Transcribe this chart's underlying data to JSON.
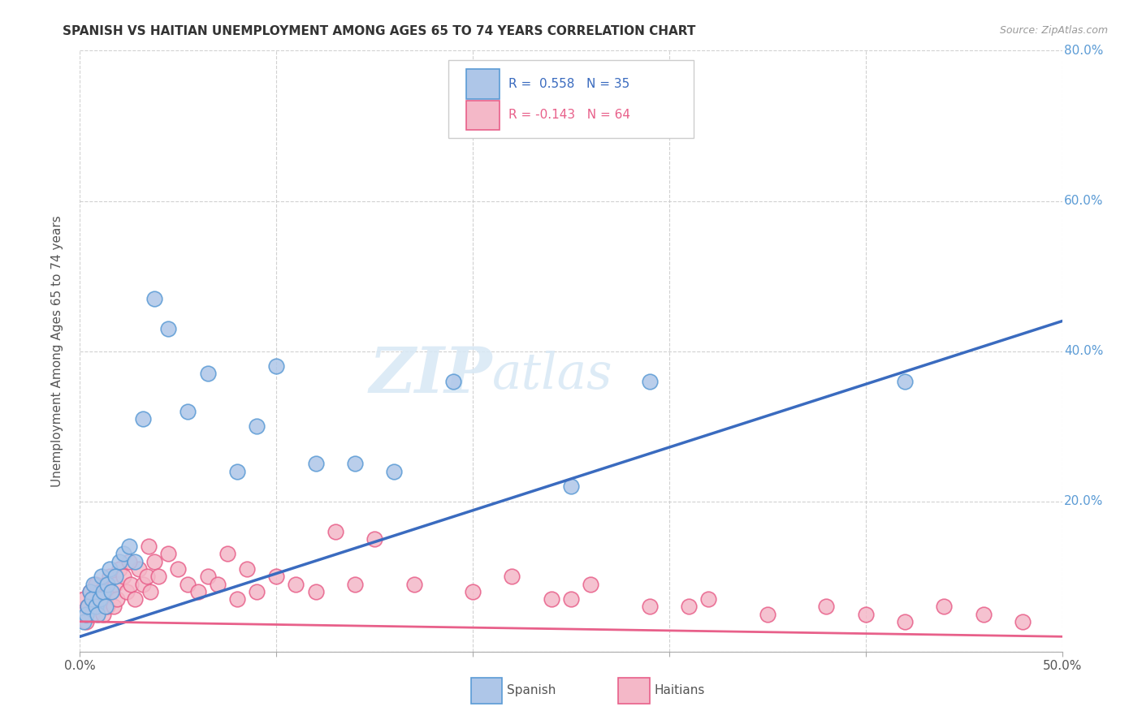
{
  "title": "SPANISH VS HAITIAN UNEMPLOYMENT AMONG AGES 65 TO 74 YEARS CORRELATION CHART",
  "source": "Source: ZipAtlas.com",
  "ylabel": "Unemployment Among Ages 65 to 74 years",
  "xlim": [
    0.0,
    0.5
  ],
  "ylim": [
    0.0,
    0.8
  ],
  "xticks": [
    0.0,
    0.1,
    0.2,
    0.3,
    0.4,
    0.5
  ],
  "yticks": [
    0.0,
    0.2,
    0.4,
    0.6,
    0.8
  ],
  "xtick_labels": [
    "0.0%",
    "",
    "",
    "",
    "",
    "50.0%"
  ],
  "ytick_labels_right": [
    "",
    "20.0%",
    "40.0%",
    "60.0%",
    "80.0%"
  ],
  "grid_color": "#cccccc",
  "background_color": "#ffffff",
  "spanish_color": "#aec6e8",
  "haitian_color": "#f4b8c8",
  "spanish_edge_color": "#5b9bd5",
  "haitian_edge_color": "#e8608a",
  "spanish_line_color": "#3a6bbf",
  "haitian_line_color": "#e8608a",
  "legend_label_spanish": "Spanish",
  "legend_label_haitian": "Haitians",
  "watermark_zip": "ZIP",
  "watermark_atlas": "atlas",
  "spanish_x": [
    0.002,
    0.003,
    0.004,
    0.005,
    0.006,
    0.007,
    0.008,
    0.009,
    0.01,
    0.011,
    0.012,
    0.013,
    0.014,
    0.015,
    0.016,
    0.018,
    0.02,
    0.022,
    0.025,
    0.028,
    0.032,
    0.038,
    0.045,
    0.055,
    0.065,
    0.08,
    0.09,
    0.1,
    0.12,
    0.14,
    0.16,
    0.19,
    0.25,
    0.29,
    0.42
  ],
  "spanish_y": [
    0.04,
    0.05,
    0.06,
    0.08,
    0.07,
    0.09,
    0.06,
    0.05,
    0.07,
    0.1,
    0.08,
    0.06,
    0.09,
    0.11,
    0.08,
    0.1,
    0.12,
    0.13,
    0.14,
    0.12,
    0.31,
    0.47,
    0.43,
    0.32,
    0.37,
    0.24,
    0.3,
    0.38,
    0.25,
    0.25,
    0.24,
    0.36,
    0.22,
    0.36,
    0.36
  ],
  "haitian_x": [
    0.001,
    0.002,
    0.003,
    0.004,
    0.005,
    0.006,
    0.007,
    0.008,
    0.009,
    0.01,
    0.011,
    0.012,
    0.013,
    0.014,
    0.015,
    0.016,
    0.017,
    0.018,
    0.019,
    0.02,
    0.022,
    0.024,
    0.026,
    0.028,
    0.03,
    0.032,
    0.034,
    0.036,
    0.038,
    0.04,
    0.045,
    0.05,
    0.055,
    0.06,
    0.065,
    0.07,
    0.08,
    0.09,
    0.1,
    0.11,
    0.13,
    0.15,
    0.17,
    0.2,
    0.22,
    0.24,
    0.26,
    0.29,
    0.32,
    0.35,
    0.38,
    0.4,
    0.42,
    0.44,
    0.46,
    0.48,
    0.025,
    0.035,
    0.075,
    0.085,
    0.12,
    0.14,
    0.25,
    0.31
  ],
  "haitian_y": [
    0.05,
    0.07,
    0.04,
    0.06,
    0.08,
    0.05,
    0.07,
    0.09,
    0.06,
    0.08,
    0.07,
    0.05,
    0.09,
    0.06,
    0.1,
    0.08,
    0.06,
    0.09,
    0.07,
    0.11,
    0.1,
    0.08,
    0.09,
    0.07,
    0.11,
    0.09,
    0.1,
    0.08,
    0.12,
    0.1,
    0.13,
    0.11,
    0.09,
    0.08,
    0.1,
    0.09,
    0.07,
    0.08,
    0.1,
    0.09,
    0.16,
    0.15,
    0.09,
    0.08,
    0.1,
    0.07,
    0.09,
    0.06,
    0.07,
    0.05,
    0.06,
    0.05,
    0.04,
    0.06,
    0.05,
    0.04,
    0.12,
    0.14,
    0.13,
    0.11,
    0.08,
    0.09,
    0.07,
    0.06
  ],
  "sp_line_x0": 0.0,
  "sp_line_y0": 0.02,
  "sp_line_x1": 0.5,
  "sp_line_y1": 0.44,
  "ht_line_x0": 0.0,
  "ht_line_y0": 0.04,
  "ht_line_x1": 0.5,
  "ht_line_y1": 0.02
}
